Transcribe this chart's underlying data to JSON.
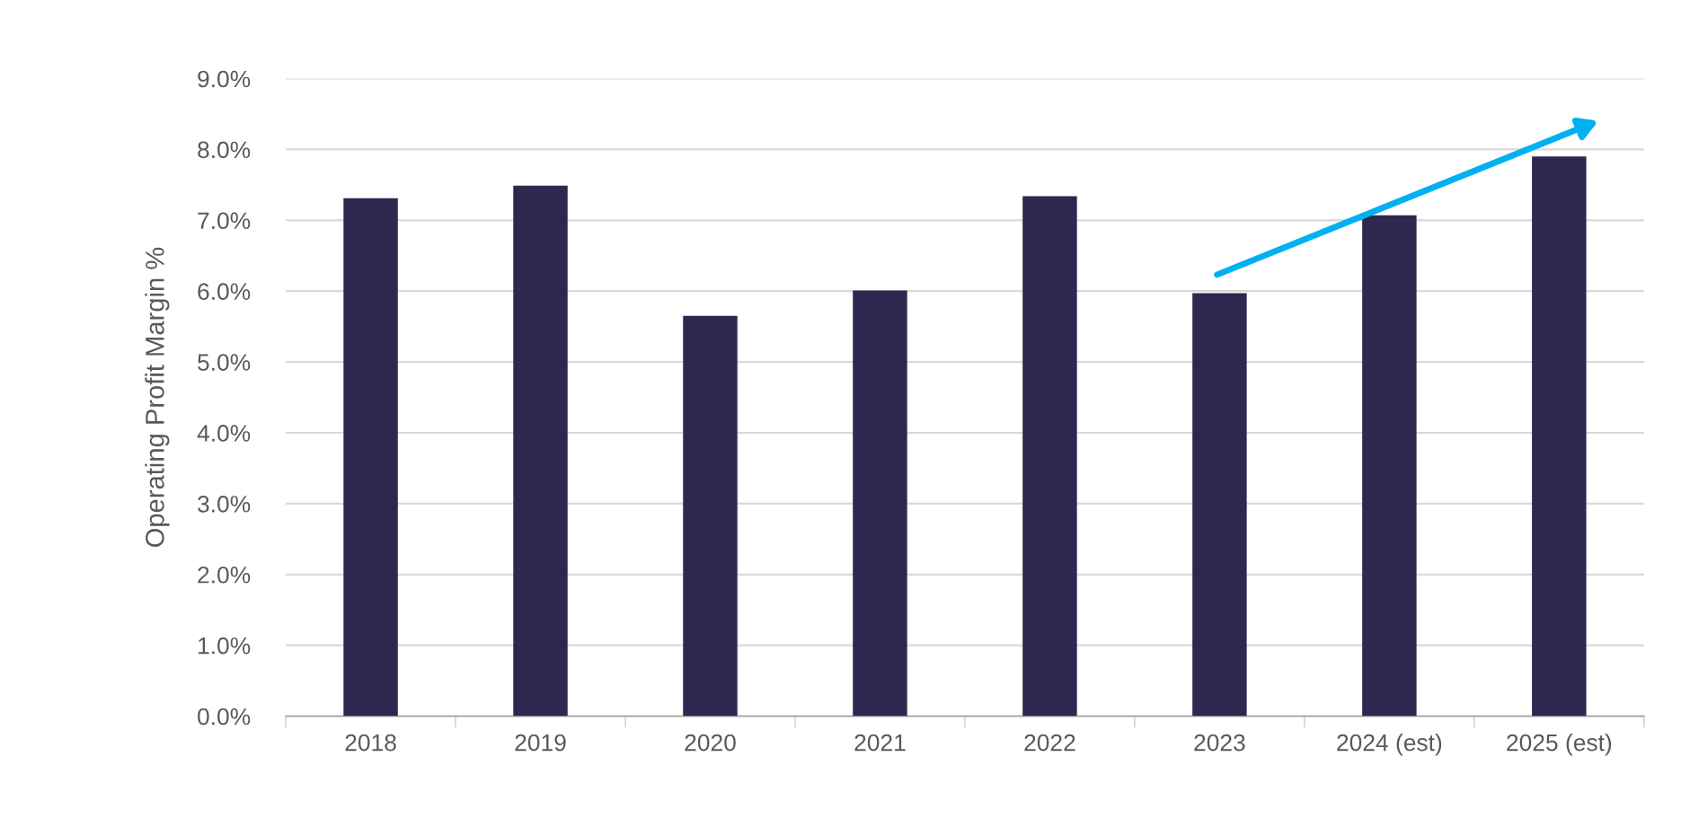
{
  "chart_data": {
    "type": "bar",
    "ylabel": "Operating Profit Margin %",
    "categories": [
      "2018",
      "2019",
      "2020",
      "2021",
      "2022",
      "2023",
      "2024 (est)",
      "2025 (est)"
    ],
    "values": [
      7.31,
      7.49,
      5.65,
      6.01,
      7.34,
      5.97,
      7.07,
      7.9
    ],
    "color": "#2e2850",
    "ylim": [
      0,
      9
    ],
    "yticks": [
      {
        "value": 0,
        "label": "0.0%"
      },
      {
        "value": 1,
        "label": "1.0%"
      },
      {
        "value": 2,
        "label": "2.0%"
      },
      {
        "value": 3,
        "label": "3.0%"
      },
      {
        "value": 4,
        "label": "4.0%"
      },
      {
        "value": 5,
        "label": "5.0%"
      },
      {
        "value": 6,
        "label": "6.0%"
      },
      {
        "value": 7,
        "label": "7.0%"
      },
      {
        "value": 8,
        "label": "8.0%"
      },
      {
        "value": 9,
        "label": "9.0%"
      }
    ],
    "grid": "y",
    "legend": false
  }
}
